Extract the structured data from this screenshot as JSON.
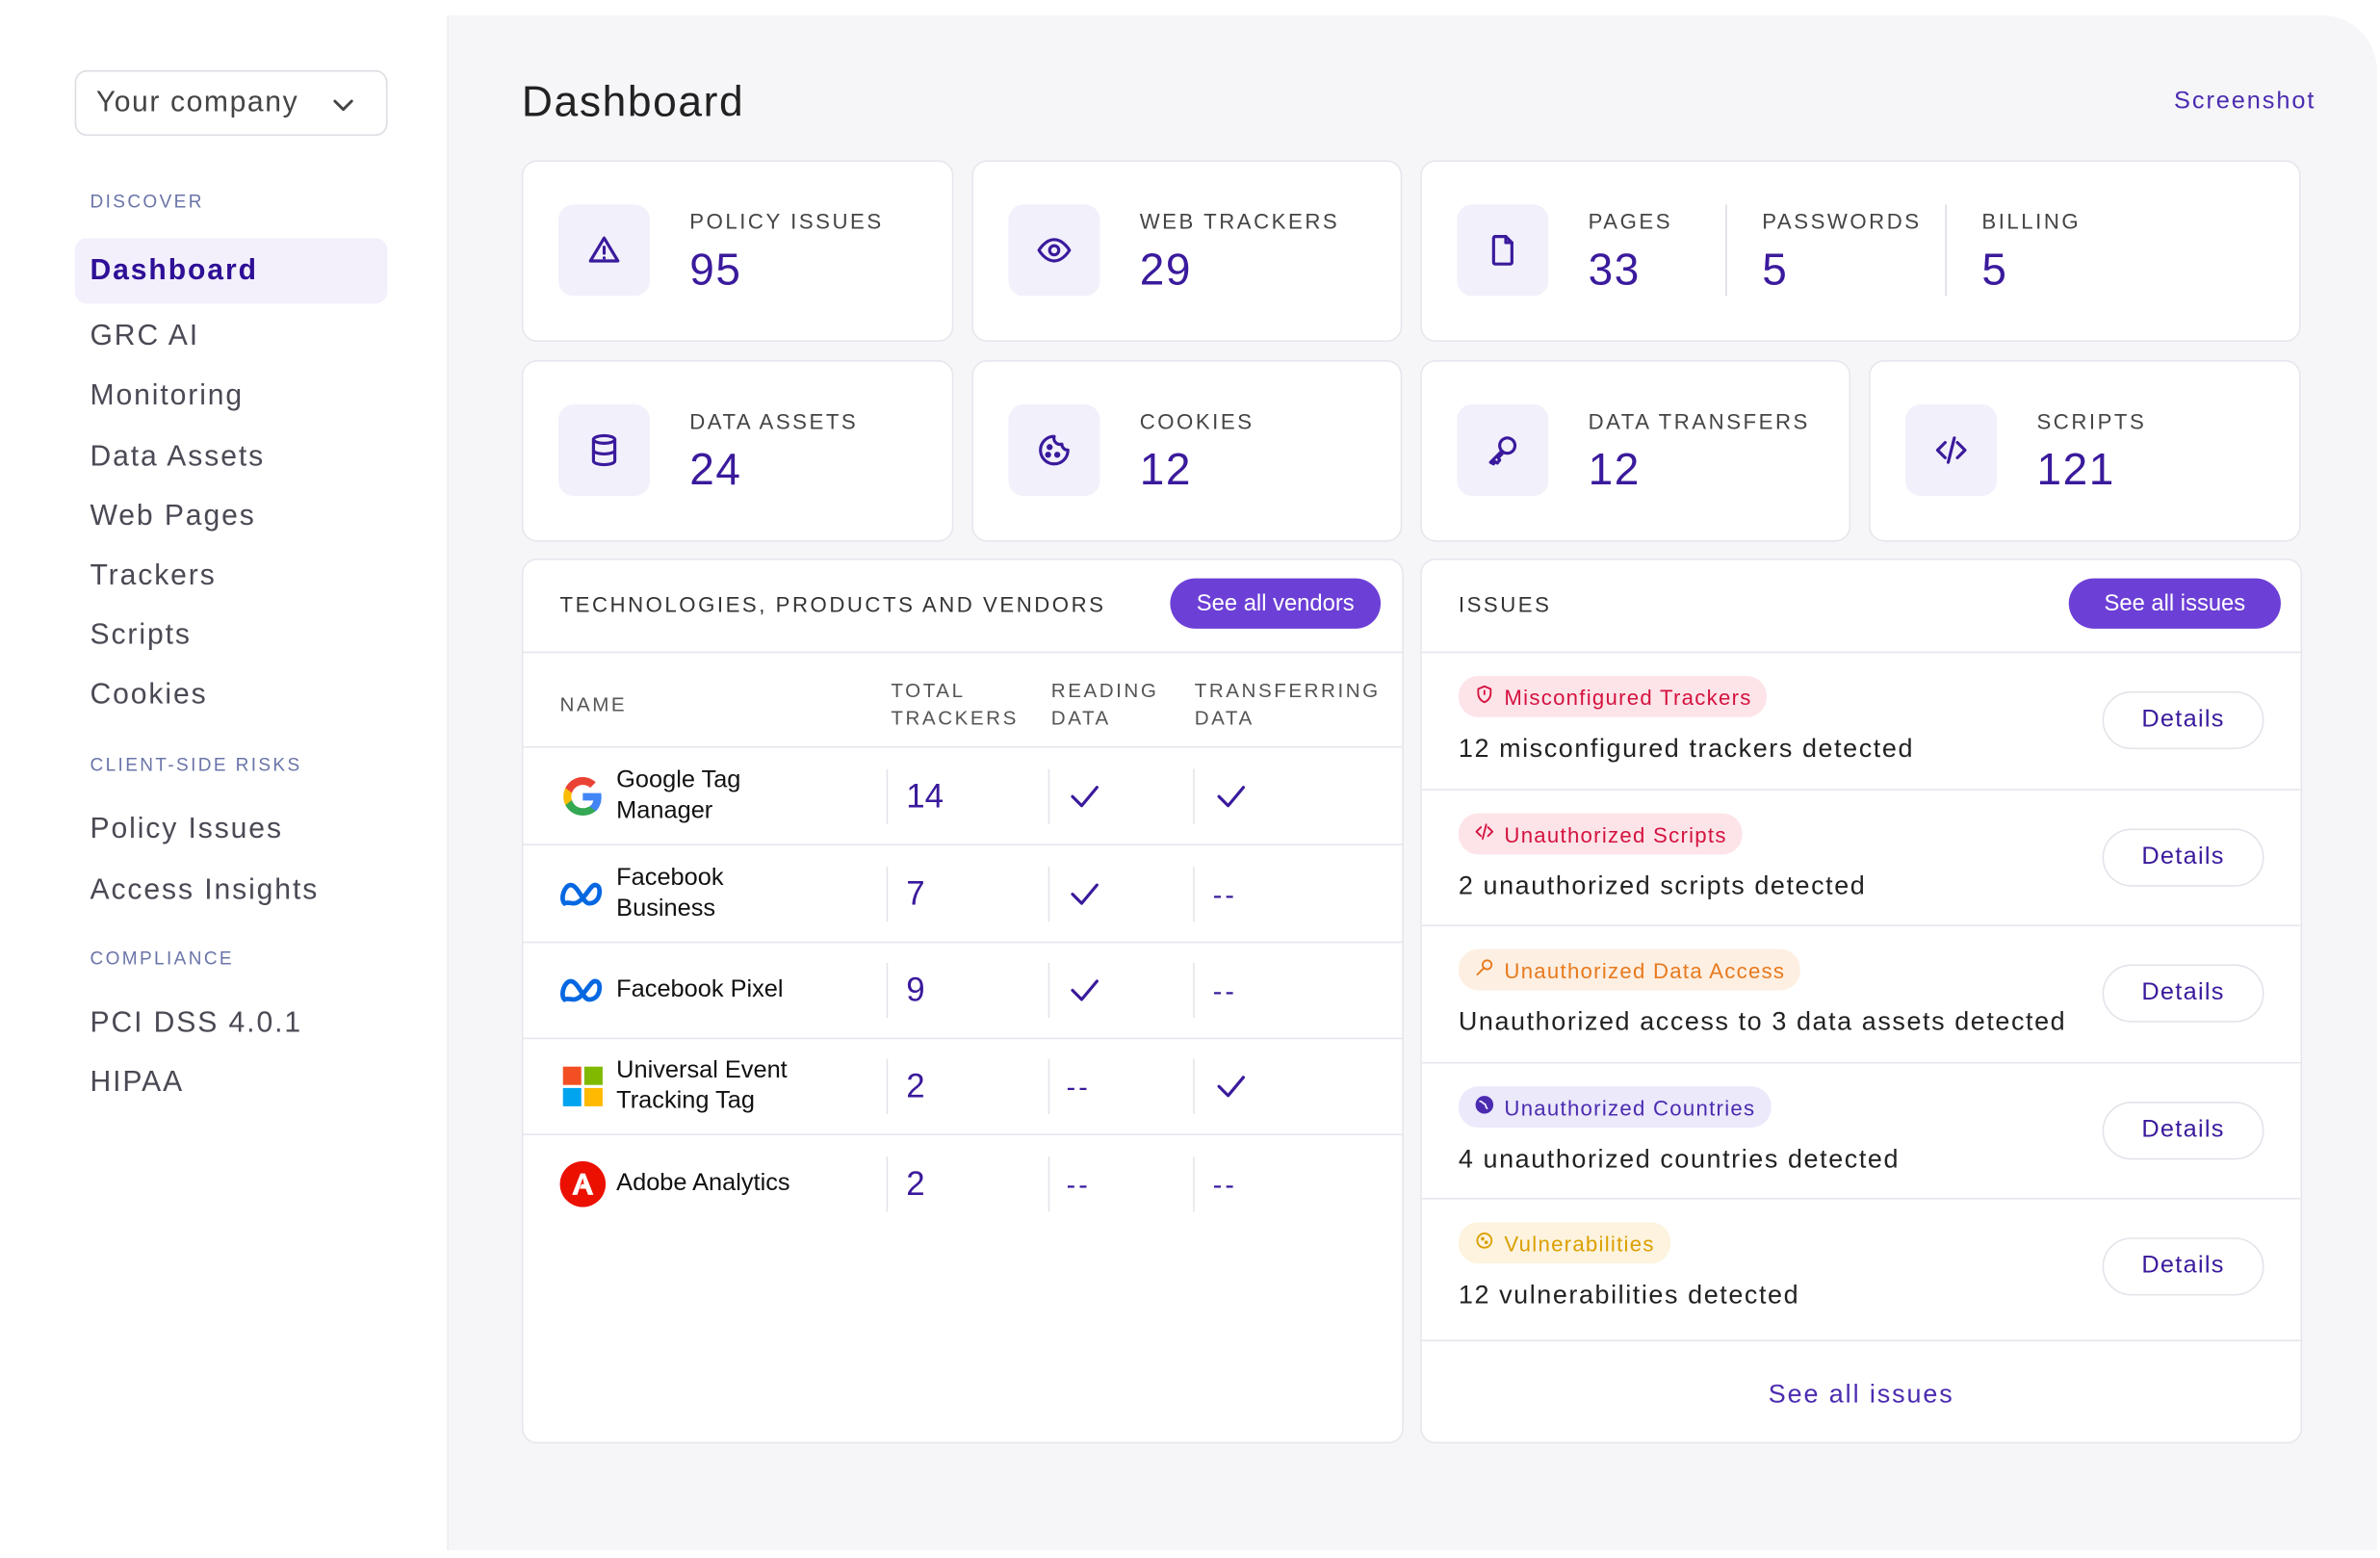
{
  "sidebar": {
    "company": "Your company",
    "sections": [
      {
        "title": "DISCOVER",
        "items": [
          "Dashboard",
          "GRC AI",
          "Monitoring",
          "Data Assets",
          "Web Pages",
          "Trackers",
          "Scripts",
          "Cookies"
        ]
      },
      {
        "title": "CLIENT-SIDE RISKS",
        "items": [
          "Policy Issues",
          "Access Insights"
        ]
      },
      {
        "title": "COMPLIANCE",
        "items": [
          "PCI DSS 4.0.1",
          "HIPAA"
        ]
      }
    ]
  },
  "header": {
    "title": "Dashboard",
    "action": "Screenshot"
  },
  "stat_cards": [
    {
      "items": [
        {
          "label": "POLICY ISSUES",
          "value": 95
        }
      ]
    },
    {
      "items": [
        {
          "label": "WEB TRACKERS",
          "value": 29
        }
      ]
    },
    {
      "items": [
        {
          "label": "PAGES",
          "value": 33
        },
        {
          "label": "PASSWORDS",
          "value": 5
        },
        {
          "label": "BILLING",
          "value": 5
        }
      ]
    },
    {
      "items": [
        {
          "label": "DATA ASSETS",
          "value": 24
        }
      ]
    },
    {
      "items": [
        {
          "label": "COOKIES",
          "value": 12
        }
      ]
    },
    {
      "items": [
        {
          "label": "DATA TRANSFERS",
          "value": 12
        }
      ]
    },
    {
      "items": [
        {
          "label": "SCRIPTS",
          "value": 121
        }
      ]
    }
  ],
  "vendors": {
    "title": "TECHNOLOGIES, PRODUCTS AND VENDORS",
    "button": "See all vendors",
    "columns": [
      "NAME",
      "TOTAL TRACKERS",
      "READING DATA",
      "TRANSFERRING DATA"
    ],
    "rows": [
      {
        "name": "Google Tag Manager",
        "trackers": 14,
        "reading": true,
        "transferring": true
      },
      {
        "name": "Facebook Business",
        "trackers": 7,
        "reading": true,
        "transferring": "--"
      },
      {
        "name": "Facebook Pixel",
        "trackers": 9,
        "reading": true,
        "transferring": "--"
      },
      {
        "name": "Universal Event Tracking Tag",
        "trackers": 2,
        "reading": "--",
        "transferring": true
      },
      {
        "name": "Adobe Analytics",
        "trackers": 2,
        "reading": "--",
        "transferring": "--"
      }
    ]
  },
  "issues": {
    "title": "ISSUES",
    "button": "See all issues",
    "items": [
      {
        "tag": "Misconfigured Trackers",
        "description": "12 misconfigured trackers detected",
        "action": "Details"
      },
      {
        "tag": "Unauthorized Scripts",
        "description": "2 unauthorized scripts detected",
        "action": "Details"
      },
      {
        "tag": "Unauthorized Data Access",
        "description": "Unauthorized access to 3 data assets detected",
        "action": "Details"
      },
      {
        "tag": "Unauthorized Countries",
        "description": "4 unauthorized countries detected",
        "action": "Details"
      },
      {
        "tag": "Vulnerabilities",
        "description": "12 vulnerabilities detected",
        "action": "Details"
      }
    ],
    "footer": "See all issues"
  }
}
